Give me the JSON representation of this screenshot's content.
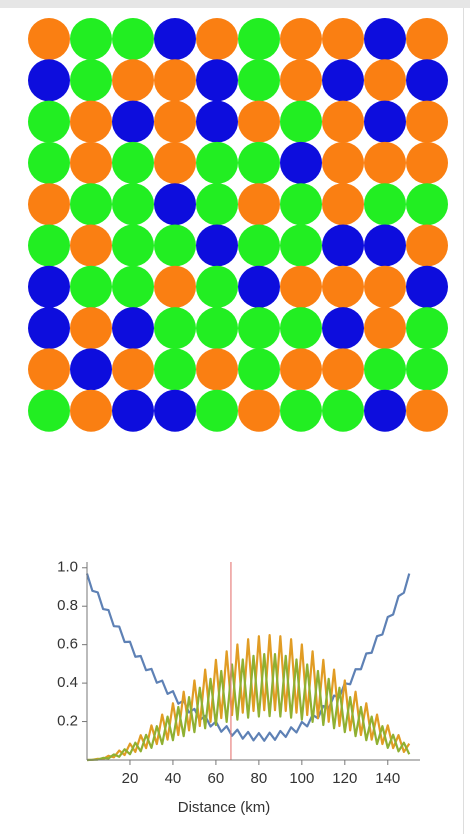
{
  "grid": {
    "palette": {
      "O": "#fa7f12",
      "G": "#22ee22",
      "B": "#0d0ddd"
    },
    "rows": [
      "OGGBOGOOBO",
      "BGOOBGOBOB",
      "GOBOBOGOBO",
      "GOGOGGBOOO",
      "OGGBGOGOGG",
      "GOGGBGGBBO",
      "BGGOGBOOOB",
      "BOBGGGGBOG",
      "OBOGOGOOGG",
      "GOBBGOGGBO"
    ]
  },
  "chart_data": {
    "type": "line",
    "xlabel": "Distance (km)",
    "x": [
      0,
      2.5,
      5,
      7.5,
      10,
      12.5,
      15,
      17.5,
      20,
      22.5,
      25,
      27.5,
      30,
      32.5,
      35,
      37.5,
      40,
      42.5,
      45,
      47.5,
      50,
      52.5,
      55,
      57.5,
      60,
      62.5,
      65,
      67.5,
      70,
      72.5,
      75,
      77.5,
      80,
      82.5,
      85,
      87.5,
      90,
      92.5,
      95,
      97.5,
      100,
      102.5,
      105,
      107.5,
      110,
      112.5,
      115,
      117.5,
      120,
      122.5,
      125,
      127.5,
      130,
      132.5,
      135,
      137.5,
      140,
      142.5,
      145,
      147.5,
      150
    ],
    "series": [
      {
        "color": "#5e81b5",
        "values": [
          0.97,
          0.88,
          0.872,
          0.785,
          0.78,
          0.696,
          0.694,
          0.614,
          0.615,
          0.537,
          0.541,
          0.467,
          0.474,
          0.402,
          0.413,
          0.344,
          0.358,
          0.293,
          0.309,
          0.247,
          0.266,
          0.207,
          0.23,
          0.174,
          0.2,
          0.147,
          0.176,
          0.126,
          0.158,
          0.111,
          0.146,
          0.102,
          0.14,
          0.1,
          0.142,
          0.105,
          0.151,
          0.12,
          0.17,
          0.143,
          0.198,
          0.175,
          0.235,
          0.217,
          0.281,
          0.267,
          0.335,
          0.326,
          0.399,
          0.394,
          0.472,
          0.472,
          0.554,
          0.558,
          0.644,
          0.653,
          0.744,
          0.757,
          0.852,
          0.87,
          0.97
        ]
      },
      {
        "color": "#e19c24",
        "values": [
          0,
          0.001,
          0.006,
          0.005,
          0.022,
          0.014,
          0.049,
          0.026,
          0.085,
          0.042,
          0.129,
          0.062,
          0.18,
          0.083,
          0.236,
          0.106,
          0.295,
          0.13,
          0.355,
          0.154,
          0.414,
          0.177,
          0.47,
          0.199,
          0.521,
          0.218,
          0.565,
          0.234,
          0.601,
          0.246,
          0.628,
          0.255,
          0.644,
          0.259,
          0.65,
          0.259,
          0.644,
          0.255,
          0.628,
          0.246,
          0.601,
          0.234,
          0.565,
          0.218,
          0.521,
          0.199,
          0.47,
          0.177,
          0.414,
          0.154,
          0.355,
          0.13,
          0.295,
          0.106,
          0.236,
          0.083,
          0.18,
          0.062,
          0.129,
          0.042,
          0.085
        ]
      },
      {
        "color": "#8fb032",
        "values": [
          0,
          0.001,
          0.002,
          0.011,
          0.008,
          0.029,
          0.017,
          0.056,
          0.03,
          0.09,
          0.045,
          0.131,
          0.063,
          0.176,
          0.083,
          0.226,
          0.103,
          0.276,
          0.124,
          0.327,
          0.145,
          0.376,
          0.165,
          0.422,
          0.182,
          0.463,
          0.198,
          0.497,
          0.21,
          0.523,
          0.22,
          0.542,
          0.226,
          0.551,
          0.228,
          0.551,
          0.226,
          0.542,
          0.22,
          0.523,
          0.21,
          0.497,
          0.198,
          0.463,
          0.182,
          0.422,
          0.165,
          0.376,
          0.145,
          0.327,
          0.124,
          0.276,
          0.103,
          0.226,
          0.083,
          0.176,
          0.063,
          0.131,
          0.045,
          0.09,
          0.03
        ]
      }
    ],
    "vline": 67,
    "vline_color": "#e8817f",
    "xlim": [
      0,
      155
    ],
    "ylim": [
      0,
      1.03
    ],
    "xticks": [
      20,
      40,
      60,
      80,
      100,
      120,
      140
    ],
    "yticks": [
      0.2,
      0.4,
      0.6,
      0.8,
      {
        "value": 1,
        "label": "1.0"
      }
    ]
  }
}
